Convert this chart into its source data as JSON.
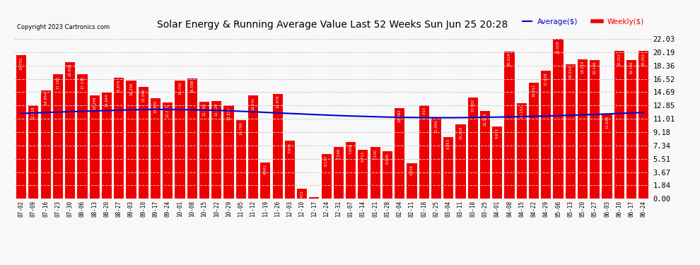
{
  "title": "Solar Energy & Running Average Value Last 52 Weeks Sun Jun 25 20:28",
  "copyright": "Copyright 2023 Cartronics.com",
  "bar_color": "#ee0000",
  "avg_line_color": "#0000cc",
  "weekly_label_color": "#ee0000",
  "avg_label_color": "#0000cc",
  "background_color": "#f8f8f8",
  "grid_color": "#cccccc",
  "categories": [
    "07-02",
    "07-09",
    "07-16",
    "07-23",
    "07-30",
    "08-06",
    "08-13",
    "08-20",
    "08-27",
    "09-03",
    "09-10",
    "09-17",
    "09-24",
    "10-01",
    "10-08",
    "10-15",
    "10-22",
    "10-29",
    "11-05",
    "11-12",
    "11-19",
    "11-26",
    "12-03",
    "12-10",
    "12-17",
    "12-24",
    "12-31",
    "01-07",
    "01-14",
    "01-21",
    "01-28",
    "02-04",
    "02-11",
    "02-18",
    "02-25",
    "03-04",
    "03-11",
    "03-18",
    "03-25",
    "04-01",
    "04-08",
    "04-15",
    "04-22",
    "04-29",
    "05-06",
    "05-13",
    "05-20",
    "05-27",
    "06-03",
    "06-10",
    "06-17",
    "06-24"
  ],
  "weekly_values": [
    19.752,
    12.918,
    14.954,
    17.161,
    18.83,
    17.131,
    14.248,
    14.644,
    16.675,
    16.256,
    15.396,
    13.8,
    13.221,
    16.295,
    16.588,
    13.38,
    13.429,
    12.83,
    10.799,
    14.241,
    4.991,
    14.479,
    7.975,
    1.431,
    0.243,
    6.177,
    7.168,
    7.806,
    6.713,
    7.1,
    6.508,
    12.493,
    4.916,
    12.915,
    11.094,
    8.453,
    10.218,
    13.962,
    12.063,
    9.972,
    20.314,
    13.152,
    16.011,
    17.629,
    22.028,
    18.553,
    19.219,
    19.146,
    11.646,
    20.352,
    19.146,
    20.352
  ],
  "avg_values": [
    11.75,
    11.82,
    11.88,
    11.94,
    12.0,
    12.05,
    12.1,
    12.15,
    12.2,
    12.25,
    12.28,
    12.3,
    12.3,
    12.28,
    12.25,
    12.22,
    12.18,
    12.12,
    12.05,
    11.98,
    11.9,
    11.82,
    11.75,
    11.68,
    11.6,
    11.53,
    11.46,
    11.4,
    11.35,
    11.3,
    11.25,
    11.22,
    11.2,
    11.18,
    11.17,
    11.17,
    11.18,
    11.2,
    11.22,
    11.25,
    11.28,
    11.32,
    11.36,
    11.4,
    11.45,
    11.5,
    11.56,
    11.62,
    11.68,
    11.75,
    11.82,
    11.88
  ],
  "yticks": [
    0.0,
    1.84,
    3.67,
    5.51,
    7.34,
    9.18,
    11.01,
    12.85,
    14.69,
    16.52,
    18.36,
    20.19,
    22.03
  ],
  "ylim": [
    0,
    23.0
  ]
}
